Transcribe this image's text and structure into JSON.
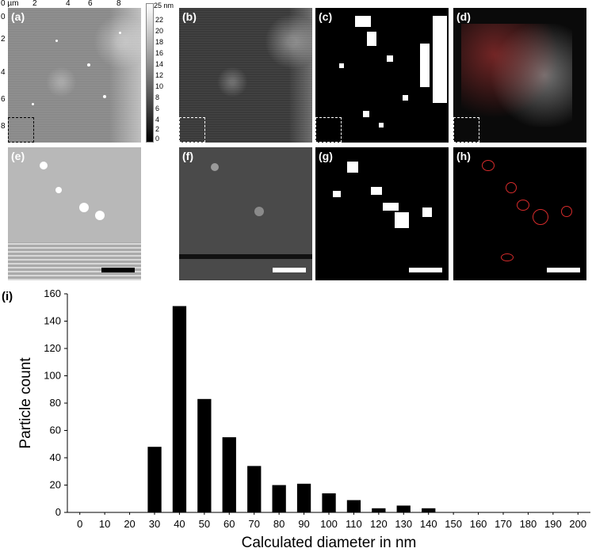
{
  "panels": {
    "a": {
      "label": "(a)"
    },
    "b": {
      "label": "(b)"
    },
    "c": {
      "label": "(c)"
    },
    "d": {
      "label": "(d)"
    },
    "e": {
      "label": "(e)"
    },
    "f": {
      "label": "(f)"
    },
    "g": {
      "label": "(g)"
    },
    "h": {
      "label": "(h)"
    },
    "i": {
      "label": "(i)"
    }
  },
  "afm_axes": {
    "x_ticks": [
      "0 µm",
      "2",
      "4",
      "6",
      "8"
    ],
    "y_ticks": [
      "0",
      "2",
      "4",
      "6",
      "8"
    ]
  },
  "colorbar": {
    "unit_label": "25 nm",
    "ticks": [
      "22",
      "20",
      "18",
      "16",
      "14",
      "12",
      "10",
      "8",
      "6",
      "4",
      "2",
      "0"
    ],
    "colors": {
      "top": "#ffffff",
      "bottom": "#000000"
    }
  },
  "chart_data": {
    "type": "bar",
    "categories": [
      "0",
      "10",
      "20",
      "30",
      "40",
      "50",
      "60",
      "70",
      "80",
      "90",
      "100",
      "110",
      "120",
      "130",
      "140",
      "150",
      "160",
      "170",
      "180",
      "190",
      "200"
    ],
    "values": [
      0,
      0,
      0,
      48,
      151,
      83,
      55,
      34,
      20,
      21,
      14,
      9,
      3,
      5,
      3,
      0,
      0,
      0,
      0,
      0,
      0
    ],
    "xlabel": "Calculated diameter in nm",
    "ylabel": "Particle count",
    "ylim": [
      0,
      160
    ],
    "yticks": [
      "0",
      "20",
      "40",
      "60",
      "80",
      "100",
      "120",
      "140",
      "160"
    ],
    "bar_color": "#000000",
    "grid": false
  }
}
